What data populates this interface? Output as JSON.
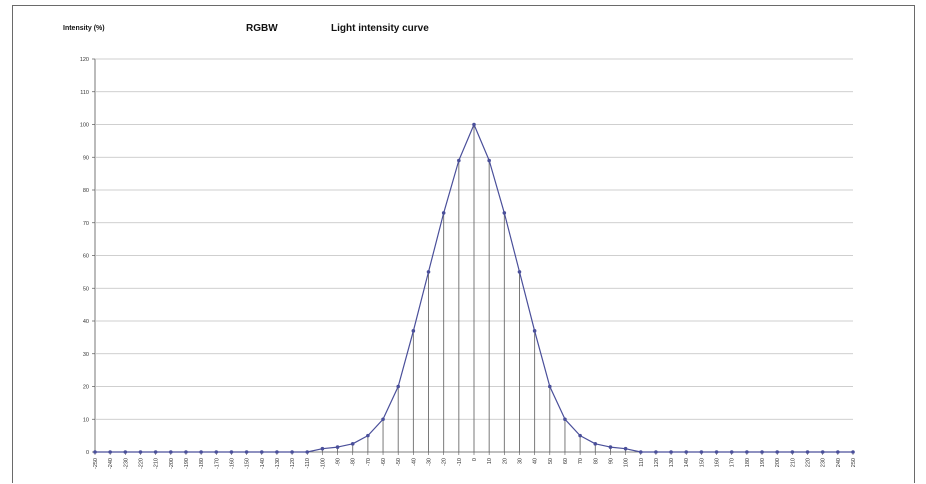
{
  "chart_data": {
    "type": "line",
    "title": "Light intensity curve",
    "series_label": "RGBW",
    "ylabel": "Intensity (%)",
    "xlabel": "",
    "ylim": [
      0,
      120
    ],
    "yticks": [
      0,
      10,
      20,
      30,
      40,
      50,
      60,
      70,
      80,
      90,
      100,
      110,
      120
    ],
    "grid": true,
    "legend": "none",
    "colors": {
      "line": "#4a4f9a",
      "drop": "#6b6b6b",
      "grid": "#bfbfbf"
    },
    "x": [
      "-250",
      "-240",
      "-230",
      "-220",
      "-210",
      "-200",
      "-190",
      "-180",
      "-170",
      "-160",
      "-150",
      "-140",
      "-130",
      "-120",
      "-110",
      "-100",
      "-90",
      "-80",
      "-70",
      "-60",
      "-50",
      "-40",
      "-30",
      "-20",
      "-10",
      "0",
      "10",
      "20",
      "30",
      "40",
      "50",
      "60",
      "70",
      "80",
      "90",
      "100",
      "110",
      "120",
      "130",
      "140",
      "150",
      "160",
      "170",
      "180",
      "190",
      "200",
      "210",
      "220",
      "230",
      "240",
      "250"
    ],
    "series": [
      {
        "values": [
          0,
          0,
          0,
          0,
          0,
          0,
          0,
          0,
          0,
          0,
          0,
          0,
          0,
          0,
          0,
          1,
          1.5,
          2.5,
          5,
          10,
          20,
          37,
          55,
          73,
          89,
          100,
          89,
          73,
          55,
          37,
          20,
          10,
          5,
          2.5,
          1.5,
          1,
          0,
          0,
          0,
          0,
          0,
          0,
          0,
          0,
          0,
          0,
          0,
          0,
          0,
          0,
          0
        ]
      }
    ]
  }
}
